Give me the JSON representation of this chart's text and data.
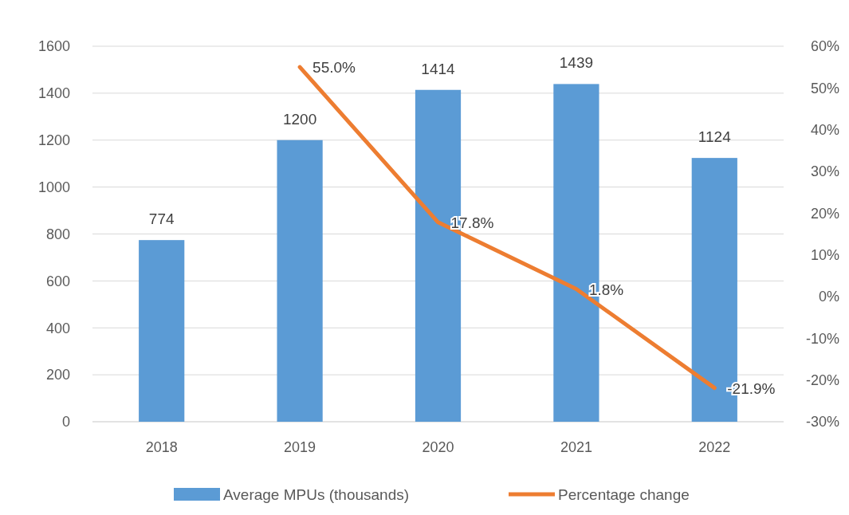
{
  "chart_data": {
    "type": "bar",
    "categories": [
      "2018",
      "2019",
      "2020",
      "2021",
      "2022"
    ],
    "series": [
      {
        "name": "Average MPUs (thousands)",
        "color": "#5b9bd5",
        "values": [
          774,
          1200,
          1414,
          1439,
          1124
        ],
        "value_labels": [
          "774",
          "1200",
          "1414",
          "1439",
          "1124"
        ]
      },
      {
        "name": "Percentage change",
        "type": "line",
        "axis": "y2",
        "color": "#ed7d31",
        "values": [
          null,
          55.0,
          17.8,
          1.8,
          -21.9
        ],
        "value_labels": [
          null,
          "55.0%",
          "17.8%",
          "1.8%",
          "-21.9%"
        ]
      }
    ],
    "ylim": [
      0,
      1600
    ],
    "yticks": [
      0,
      200,
      400,
      600,
      800,
      1000,
      1200,
      1400,
      1600
    ],
    "y2lim": [
      -30,
      60
    ],
    "y2ticks": [
      {
        "value": -30,
        "label": "-30%"
      },
      {
        "value": -20,
        "label": "-20%"
      },
      {
        "value": -10,
        "label": "-10%"
      },
      {
        "value": 0,
        "label": "0%"
      },
      {
        "value": 10,
        "label": "10%"
      },
      {
        "value": 20,
        "label": "20%"
      },
      {
        "value": 30,
        "label": "30%"
      },
      {
        "value": 40,
        "label": "40%"
      },
      {
        "value": 50,
        "label": "50%"
      },
      {
        "value": 60,
        "label": "60%"
      }
    ],
    "grid": "y",
    "legend": "bottom",
    "marker": "none",
    "line_style": "solid"
  }
}
